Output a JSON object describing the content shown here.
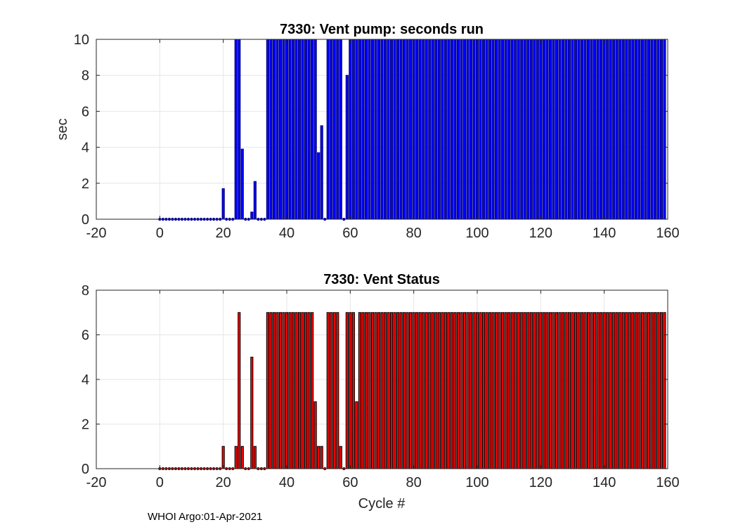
{
  "footer": "WHOI Argo:01-Apr-2021",
  "chart_data": [
    {
      "type": "bar",
      "title": "7330: Vent pump: seconds run",
      "xlabel": "",
      "ylabel": "sec",
      "xlim": [
        -20,
        160
      ],
      "ylim": [
        0,
        10
      ],
      "xticks": [
        -20,
        0,
        20,
        40,
        60,
        80,
        100,
        120,
        140,
        160
      ],
      "yticks": [
        0,
        2,
        4,
        6,
        8,
        10
      ],
      "grid": true,
      "color": "#0000ff",
      "edge_color": "#000080",
      "x_start": 0,
      "values": [
        0,
        0,
        0,
        0,
        0,
        0,
        0,
        0,
        0,
        0,
        0,
        0,
        0,
        0,
        0,
        0,
        0,
        0,
        0,
        0,
        1.7,
        0,
        0,
        0,
        10,
        10,
        3.9,
        0,
        0,
        0.4,
        2.1,
        0,
        0,
        0,
        10,
        10,
        10,
        10,
        10,
        10,
        10,
        10,
        10,
        10,
        10,
        10,
        10,
        10,
        10,
        10,
        3.7,
        5.2,
        0,
        10,
        10,
        10,
        10,
        10,
        0,
        8,
        10,
        10,
        10,
        10,
        10,
        10,
        10,
        10,
        10,
        10,
        10,
        10,
        10,
        10,
        10,
        10,
        10,
        10,
        10,
        10,
        10,
        10,
        10,
        10,
        10,
        10,
        10,
        10,
        10,
        10,
        10,
        10,
        10,
        10,
        10,
        10,
        10,
        10,
        10,
        10,
        10,
        10,
        10,
        10,
        10,
        10,
        10,
        10,
        10,
        10,
        10,
        10,
        10,
        10,
        10,
        10,
        10,
        10,
        10,
        10,
        10,
        10,
        10,
        10,
        10,
        10,
        10,
        10,
        10,
        10,
        10,
        10,
        10,
        10,
        10,
        10,
        10,
        10,
        10,
        10,
        10,
        10,
        10,
        10,
        10,
        10,
        10,
        10,
        10,
        10,
        10,
        10,
        10,
        10,
        10,
        10,
        10,
        10,
        10,
        10
      ]
    },
    {
      "type": "bar",
      "title": "7330: Vent Status",
      "xlabel": "Cycle #",
      "ylabel": "",
      "xlim": [
        -20,
        160
      ],
      "ylim": [
        0,
        8
      ],
      "xticks": [
        -20,
        0,
        20,
        40,
        60,
        80,
        100,
        120,
        140,
        160
      ],
      "yticks": [
        0,
        2,
        4,
        6,
        8
      ],
      "grid": true,
      "color": "#ff0000",
      "edge_color": "#000000",
      "x_start": 0,
      "values": [
        0,
        0,
        0,
        0,
        0,
        0,
        0,
        0,
        0,
        0,
        0,
        0,
        0,
        0,
        0,
        0,
        0,
        0,
        0,
        0,
        1,
        0,
        0,
        0,
        1,
        7,
        1,
        0,
        0,
        5,
        1,
        0,
        0,
        0,
        7,
        7,
        7,
        7,
        7,
        7,
        7,
        7,
        7,
        7,
        7,
        7,
        7,
        7,
        7,
        3,
        1,
        1,
        0,
        7,
        7,
        7,
        7,
        1,
        0,
        7,
        7,
        7,
        3,
        7,
        7,
        7,
        7,
        7,
        7,
        7,
        7,
        7,
        7,
        7,
        7,
        7,
        7,
        7,
        7,
        7,
        7,
        7,
        7,
        7,
        7,
        7,
        7,
        7,
        7,
        7,
        7,
        7,
        7,
        7,
        7,
        7,
        7,
        7,
        7,
        7,
        7,
        7,
        7,
        7,
        7,
        7,
        7,
        7,
        7,
        7,
        7,
        7,
        7,
        7,
        7,
        7,
        7,
        7,
        7,
        7,
        7,
        7,
        7,
        7,
        7,
        7,
        7,
        7,
        7,
        7,
        7,
        7,
        7,
        7,
        7,
        7,
        7,
        7,
        7,
        7,
        7,
        7,
        7,
        7,
        7,
        7,
        7,
        7,
        7,
        7,
        7,
        7,
        7,
        7,
        7,
        7,
        7,
        7,
        7,
        7
      ]
    }
  ]
}
